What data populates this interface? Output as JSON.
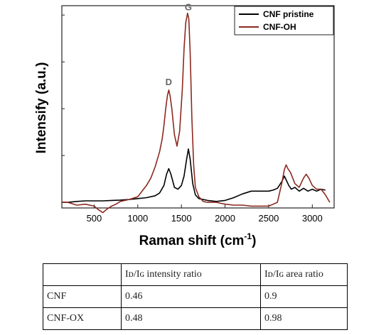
{
  "chart_data": {
    "type": "line",
    "title": "",
    "xlabel": "Raman shift (cm",
    "xlabel_sup": "-1",
    "xlabel_tail": ")",
    "ylabel": "Intensify (a.u.)",
    "xlim": [
      130,
      3250
    ],
    "ylim": [
      -0.3,
      10.5
    ],
    "xticks": [
      500,
      1000,
      1500,
      2000,
      2500,
      3000
    ],
    "xtick_labels": [
      "500",
      "1000",
      "1500",
      "2000",
      "2500",
      "3000"
    ],
    "grid": false,
    "legend_position": "top-right",
    "annotations": [
      {
        "text": "D",
        "x": 1355,
        "y": 6.1
      },
      {
        "text": "G",
        "x": 1580,
        "y": 10.1
      }
    ],
    "series": [
      {
        "name": "CNF pristine",
        "color": "#000000",
        "x": [
          130,
          200,
          300,
          400,
          500,
          600,
          700,
          800,
          900,
          1000,
          1100,
          1200,
          1250,
          1300,
          1330,
          1355,
          1380,
          1420,
          1460,
          1500,
          1530,
          1560,
          1580,
          1600,
          1630,
          1660,
          1700,
          1800,
          1900,
          2000,
          2100,
          2200,
          2300,
          2400,
          2500,
          2550,
          2600,
          2650,
          2680,
          2700,
          2730,
          2760,
          2800,
          2850,
          2900,
          2950,
          3000,
          3050,
          3100,
          3150
        ],
        "y": [
          0.0,
          0.0,
          0.05,
          0.08,
          0.08,
          0.08,
          0.1,
          0.12,
          0.15,
          0.2,
          0.25,
          0.35,
          0.5,
          0.9,
          1.5,
          1.8,
          1.5,
          0.8,
          0.7,
          0.9,
          1.4,
          2.3,
          2.85,
          2.3,
          1.0,
          0.4,
          0.2,
          0.1,
          0.05,
          0.1,
          0.25,
          0.45,
          0.6,
          0.6,
          0.6,
          0.65,
          0.75,
          1.1,
          1.4,
          1.2,
          0.9,
          0.7,
          0.8,
          0.6,
          0.75,
          0.6,
          0.7,
          0.6,
          0.7,
          0.65
        ]
      },
      {
        "name": "CNF-OH",
        "color": "#8b2a20",
        "x": [
          130,
          200,
          300,
          400,
          500,
          550,
          600,
          650,
          700,
          750,
          800,
          900,
          1000,
          1050,
          1100,
          1150,
          1200,
          1250,
          1280,
          1300,
          1320,
          1340,
          1355,
          1370,
          1390,
          1420,
          1450,
          1480,
          1510,
          1530,
          1550,
          1570,
          1585,
          1600,
          1620,
          1640,
          1660,
          1700,
          1750,
          1800,
          1900,
          2000,
          2100,
          2200,
          2300,
          2400,
          2500,
          2600,
          2650,
          2680,
          2700,
          2720,
          2750,
          2800,
          2850,
          2900,
          2930,
          2960,
          3000,
          3050,
          3100,
          3150,
          3200
        ],
        "y": [
          0.0,
          0.0,
          -0.15,
          -0.1,
          -0.2,
          -0.4,
          -0.55,
          -0.35,
          -0.2,
          -0.1,
          0.05,
          0.15,
          0.3,
          0.6,
          0.9,
          1.3,
          1.9,
          2.7,
          3.4,
          4.1,
          5.0,
          5.7,
          6.0,
          5.7,
          5.0,
          3.6,
          3.0,
          3.8,
          6.0,
          8.2,
          9.6,
          10.1,
          9.8,
          8.0,
          4.5,
          2.0,
          0.8,
          0.3,
          0.05,
          0.0,
          0.0,
          -0.1,
          -0.15,
          -0.15,
          -0.2,
          -0.2,
          -0.2,
          0.0,
          1.0,
          1.75,
          2.0,
          1.8,
          1.6,
          1.0,
          0.8,
          1.3,
          1.5,
          1.3,
          0.9,
          0.7,
          0.7,
          0.4,
          0.0
        ]
      }
    ]
  },
  "table": {
    "header": [
      "",
      "Iᴅ/Iɢ intensity ratio",
      "Iᴅ/Iɢ area ratio"
    ],
    "rows": [
      [
        "CNF",
        "0.46",
        "0.9"
      ],
      [
        "CNF-OX",
        "0.48",
        "0.98"
      ]
    ]
  }
}
